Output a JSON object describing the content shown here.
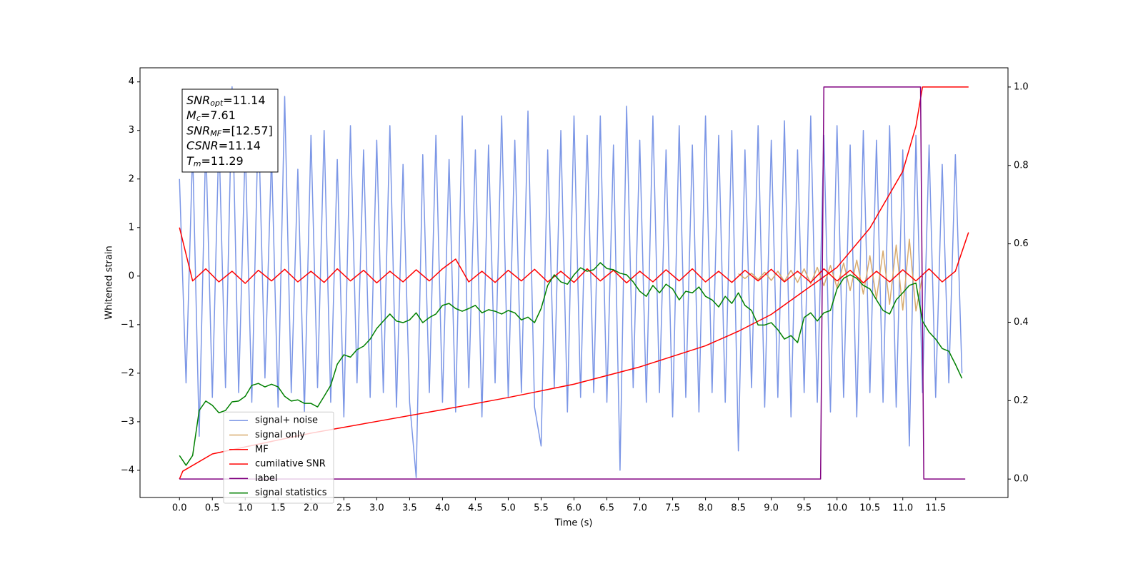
{
  "chart_data": {
    "type": "line",
    "xlabel": "Time (s)",
    "ylabel": "Whitened strain",
    "xlim": [
      -0.6,
      12.6
    ],
    "ylim": [
      -4.56,
      4.29
    ],
    "y2lim": [
      -0.047,
      1.049
    ],
    "xticks": [
      {
        "value": 0,
        "label": "0.0"
      },
      0.5,
      {
        "value": 1,
        "label": "1.0"
      },
      1.5,
      {
        "value": 2,
        "label": "2.0"
      },
      2.5,
      {
        "value": 3,
        "label": "3.0"
      },
      3.5,
      {
        "value": 4,
        "label": "4.0"
      },
      4.5,
      {
        "value": 5,
        "label": "5.0"
      },
      5.5,
      {
        "value": 6,
        "label": "6.0"
      },
      6.5,
      {
        "value": 7,
        "label": "7.0"
      },
      7.5,
      {
        "value": 8,
        "label": "8.0"
      },
      8.5,
      {
        "value": 9,
        "label": "9.0"
      },
      9.5,
      {
        "value": 10,
        "label": "10.0"
      },
      10.5,
      {
        "value": 11,
        "label": "11.0"
      },
      11.5
    ],
    "yticks": [
      {
        "value": -4,
        "label": "−4"
      },
      {
        "value": -3,
        "label": "−3"
      },
      {
        "value": -2,
        "label": "−2"
      },
      {
        "value": -1,
        "label": "−1"
      },
      0,
      1,
      2,
      3,
      4
    ],
    "y2ticks": [
      {
        "value": 0,
        "label": "0.0"
      },
      0.2,
      0.4,
      0.6,
      0.8,
      {
        "value": 1,
        "label": "1.0"
      }
    ],
    "legend": "lower left",
    "annotations": [
      {
        "main": "SNR",
        "sub": "opt",
        "rest": "=11.14"
      },
      {
        "main": "M",
        "sub": "c",
        "rest": "=7.61"
      },
      {
        "main": "SNR",
        "sub": "MF",
        "rest": "=[12.57]"
      },
      {
        "main": "CSNR",
        "rest": "=11.14"
      },
      {
        "main": "T",
        "sub": "m",
        "rest": "=11.29"
      }
    ],
    "series": [
      {
        "name": "signal+ noise",
        "color": "#7b96e6",
        "axis": "y",
        "x": [
          0,
          0.1,
          0.2,
          0.3,
          0.4,
          0.5,
          0.6,
          0.7,
          0.8,
          0.9,
          1,
          1.1,
          1.2,
          1.3,
          1.4,
          1.5,
          1.6,
          1.7,
          1.8,
          1.9,
          2,
          2.1,
          2.2,
          2.3,
          2.4,
          2.5,
          2.6,
          2.7,
          2.8,
          2.9,
          3,
          3.1,
          3.2,
          3.3,
          3.4,
          3.5,
          3.6,
          3.7,
          3.8,
          3.9,
          4,
          4.1,
          4.2,
          4.3,
          4.4,
          4.5,
          4.6,
          4.7,
          4.8,
          4.9,
          5,
          5.1,
          5.2,
          5.3,
          5.4,
          5.5,
          5.6,
          5.7,
          5.8,
          5.9,
          6,
          6.1,
          6.2,
          6.3,
          6.4,
          6.5,
          6.6,
          6.7,
          6.8,
          6.9,
          7,
          7.1,
          7.2,
          7.3,
          7.4,
          7.5,
          7.6,
          7.7,
          7.8,
          7.9,
          8,
          8.1,
          8.2,
          8.3,
          8.4,
          8.5,
          8.6,
          8.7,
          8.8,
          8.9,
          9,
          9.1,
          9.2,
          9.3,
          9.4,
          9.5,
          9.6,
          9.7,
          9.8,
          9.9,
          10,
          10.1,
          10.2,
          10.3,
          10.4,
          10.5,
          10.6,
          10.7,
          10.8,
          10.9,
          11,
          11.1,
          11.2,
          11.3,
          11.4,
          11.5,
          11.6,
          11.7,
          11.8,
          11.9
        ],
        "values": [
          2.0,
          -2.2,
          2.6,
          -3.3,
          2.8,
          -2.5,
          2.9,
          -2.3,
          3.9,
          -2.4,
          2.7,
          -2.6,
          3.3,
          -2.1,
          2.5,
          -2.7,
          3.7,
          -2.4,
          2.2,
          -2.8,
          2.9,
          -2.3,
          3.0,
          -2.6,
          2.4,
          -2.9,
          3.1,
          -2.2,
          2.6,
          -2.5,
          2.8,
          -2.4,
          3.1,
          -2.7,
          2.3,
          -2.6,
          -4.15,
          2.5,
          -2.4,
          2.9,
          -2.6,
          2.4,
          -2.8,
          3.3,
          -2.3,
          2.6,
          -2.9,
          2.7,
          -2.2,
          3.3,
          -2.5,
          2.8,
          -2.4,
          3.4,
          -2.7,
          -3.5,
          2.6,
          -2.3,
          3.0,
          -2.8,
          3.3,
          -2.5,
          2.9,
          -2.4,
          3.3,
          -2.6,
          2.7,
          -4.0,
          3.5,
          -2.3,
          2.8,
          -2.6,
          3.3,
          -2.4,
          2.6,
          -2.9,
          3.1,
          -2.5,
          2.7,
          -2.8,
          3.3,
          -2.4,
          2.9,
          -2.6,
          3.0,
          -3.6,
          2.6,
          -2.3,
          3.1,
          -2.7,
          2.8,
          -2.5,
          3.2,
          -2.9,
          2.6,
          -2.4,
          3.3,
          -2.6,
          2.9,
          -2.8,
          3.1,
          -2.5,
          2.7,
          -2.9,
          3.0,
          -2.4,
          2.8,
          -2.6,
          3.1,
          -2.7,
          2.6,
          -3.5,
          2.9,
          -2.4,
          2.7,
          -2.5,
          2.3,
          -2.2,
          2.5,
          -2.0
        ]
      },
      {
        "name": "signal only",
        "color": "#d8ab6e",
        "axis": "y",
        "x": [
          8.5,
          8.6,
          8.7,
          8.8,
          8.9,
          9,
          9.1,
          9.2,
          9.3,
          9.4,
          9.5,
          9.6,
          9.7,
          9.8,
          9.9,
          10,
          10.1,
          10.2,
          10.3,
          10.4,
          10.5,
          10.6,
          10.7,
          10.8,
          10.9,
          11,
          11.1,
          11.2,
          11.3
        ],
        "values": [
          0.05,
          -0.05,
          0.06,
          -0.07,
          0.08,
          -0.09,
          0.1,
          -0.11,
          0.12,
          -0.13,
          0.15,
          -0.16,
          0.18,
          -0.2,
          0.22,
          -0.24,
          0.27,
          -0.3,
          0.33,
          -0.37,
          0.42,
          -0.47,
          0.52,
          -0.58,
          0.64,
          -0.7,
          0.76,
          -0.72,
          0.0
        ]
      },
      {
        "name": "MF",
        "color": "#ff0000",
        "axis": "y",
        "x": [
          0,
          0.2,
          0.4,
          0.6,
          0.8,
          1,
          1.2,
          1.4,
          1.6,
          1.8,
          2,
          2.2,
          2.4,
          2.6,
          2.8,
          3,
          3.2,
          3.4,
          3.6,
          3.8,
          4,
          4.2,
          4.4,
          4.6,
          4.8,
          5,
          5.2,
          5.4,
          5.6,
          5.8,
          6,
          6.2,
          6.4,
          6.6,
          6.8,
          7,
          7.2,
          7.4,
          7.6,
          7.8,
          8,
          8.2,
          8.4,
          8.6,
          8.8,
          9,
          9.2,
          9.4,
          9.6,
          9.8,
          10,
          10.2,
          10.4,
          10.6,
          10.8,
          11,
          11.2,
          11.4,
          11.6,
          11.8,
          12
        ],
        "values": [
          1.0,
          -0.1,
          0.15,
          -0.12,
          0.1,
          -0.15,
          0.12,
          -0.1,
          0.14,
          -0.12,
          0.1,
          -0.13,
          0.15,
          -0.1,
          0.12,
          -0.14,
          0.1,
          -0.12,
          0.13,
          -0.1,
          0.15,
          0.35,
          -0.12,
          0.1,
          -0.13,
          0.12,
          -0.1,
          0.14,
          -0.12,
          0.1,
          -0.13,
          0.15,
          -0.1,
          0.12,
          -0.14,
          0.1,
          -0.12,
          0.13,
          -0.1,
          0.15,
          -0.12,
          0.1,
          -0.13,
          0.12,
          -0.1,
          0.14,
          -0.12,
          0.1,
          -0.13,
          0.15,
          -0.1,
          0.12,
          -0.14,
          0.1,
          -0.12,
          0.13,
          -0.1,
          0.15,
          -0.12,
          0.1,
          0.9
        ]
      },
      {
        "name": "cumilative SNR",
        "color": "#ff0000",
        "axis": "y2",
        "x": [
          0,
          0.05,
          0.5,
          1,
          2,
          3,
          4,
          5,
          6,
          7,
          8,
          8.5,
          9,
          9.5,
          10,
          10.5,
          11,
          11.2,
          11.3,
          12
        ],
        "values": [
          0.0,
          0.02,
          0.064,
          0.082,
          0.117,
          0.147,
          0.177,
          0.208,
          0.242,
          0.286,
          0.34,
          0.377,
          0.42,
          0.48,
          0.54,
          0.64,
          0.785,
          0.9,
          1.0,
          1.0
        ]
      },
      {
        "name": "label",
        "color": "#800080",
        "axis": "y2",
        "x": [
          0,
          9.75,
          9.8,
          11.27,
          11.32,
          11.95
        ],
        "values": [
          0,
          0,
          1,
          1,
          0,
          0
        ]
      },
      {
        "name": "signal statistics",
        "color": "#008000",
        "axis": "y2",
        "x": [
          0,
          0.1,
          0.2,
          0.3,
          0.4,
          0.5,
          0.6,
          0.7,
          0.8,
          0.9,
          1,
          1.1,
          1.2,
          1.3,
          1.4,
          1.5,
          1.6,
          1.7,
          1.8,
          1.9,
          2,
          2.1,
          2.2,
          2.3,
          2.4,
          2.5,
          2.6,
          2.7,
          2.8,
          2.9,
          3,
          3.1,
          3.2,
          3.3,
          3.4,
          3.5,
          3.6,
          3.7,
          3.8,
          3.9,
          4,
          4.1,
          4.2,
          4.3,
          4.4,
          4.5,
          4.6,
          4.7,
          4.8,
          4.9,
          5,
          5.1,
          5.2,
          5.3,
          5.4,
          5.5,
          5.6,
          5.7,
          5.8,
          5.9,
          6,
          6.1,
          6.2,
          6.3,
          6.4,
          6.5,
          6.6,
          6.7,
          6.8,
          6.9,
          7,
          7.1,
          7.2,
          7.3,
          7.4,
          7.5,
          7.6,
          7.7,
          7.8,
          7.9,
          8,
          8.1,
          8.2,
          8.3,
          8.4,
          8.5,
          8.6,
          8.7,
          8.8,
          8.9,
          9,
          9.1,
          9.2,
          9.3,
          9.4,
          9.5,
          9.6,
          9.7,
          9.8,
          9.9,
          10,
          10.1,
          10.2,
          10.3,
          10.4,
          10.5,
          10.6,
          10.7,
          10.8,
          10.9,
          11,
          11.1,
          11.2,
          11.3,
          11.4,
          11.5,
          11.6,
          11.7,
          11.8,
          11.9
        ],
        "values": [
          0.06,
          0.035,
          0.06,
          0.175,
          0.199,
          0.188,
          0.169,
          0.175,
          0.197,
          0.199,
          0.211,
          0.239,
          0.244,
          0.235,
          0.242,
          0.235,
          0.211,
          0.199,
          0.202,
          0.193,
          0.193,
          0.184,
          0.211,
          0.239,
          0.293,
          0.317,
          0.311,
          0.33,
          0.339,
          0.357,
          0.384,
          0.403,
          0.421,
          0.403,
          0.399,
          0.406,
          0.424,
          0.399,
          0.412,
          0.421,
          0.443,
          0.448,
          0.435,
          0.428,
          0.435,
          0.443,
          0.424,
          0.432,
          0.428,
          0.421,
          0.43,
          0.424,
          0.406,
          0.413,
          0.399,
          0.435,
          0.494,
          0.521,
          0.503,
          0.497,
          0.521,
          0.539,
          0.53,
          0.534,
          0.552,
          0.537,
          0.534,
          0.525,
          0.521,
          0.503,
          0.479,
          0.466,
          0.494,
          0.475,
          0.497,
          0.485,
          0.457,
          0.479,
          0.475,
          0.49,
          0.466,
          0.457,
          0.439,
          0.466,
          0.448,
          0.475,
          0.443,
          0.43,
          0.393,
          0.393,
          0.399,
          0.381,
          0.357,
          0.366,
          0.348,
          0.412,
          0.424,
          0.403,
          0.424,
          0.43,
          0.485,
          0.512,
          0.521,
          0.512,
          0.494,
          0.485,
          0.457,
          0.43,
          0.421,
          0.457,
          0.475,
          0.494,
          0.5,
          0.403,
          0.375,
          0.357,
          0.333,
          0.326,
          0.293,
          0.257
        ]
      }
    ]
  }
}
